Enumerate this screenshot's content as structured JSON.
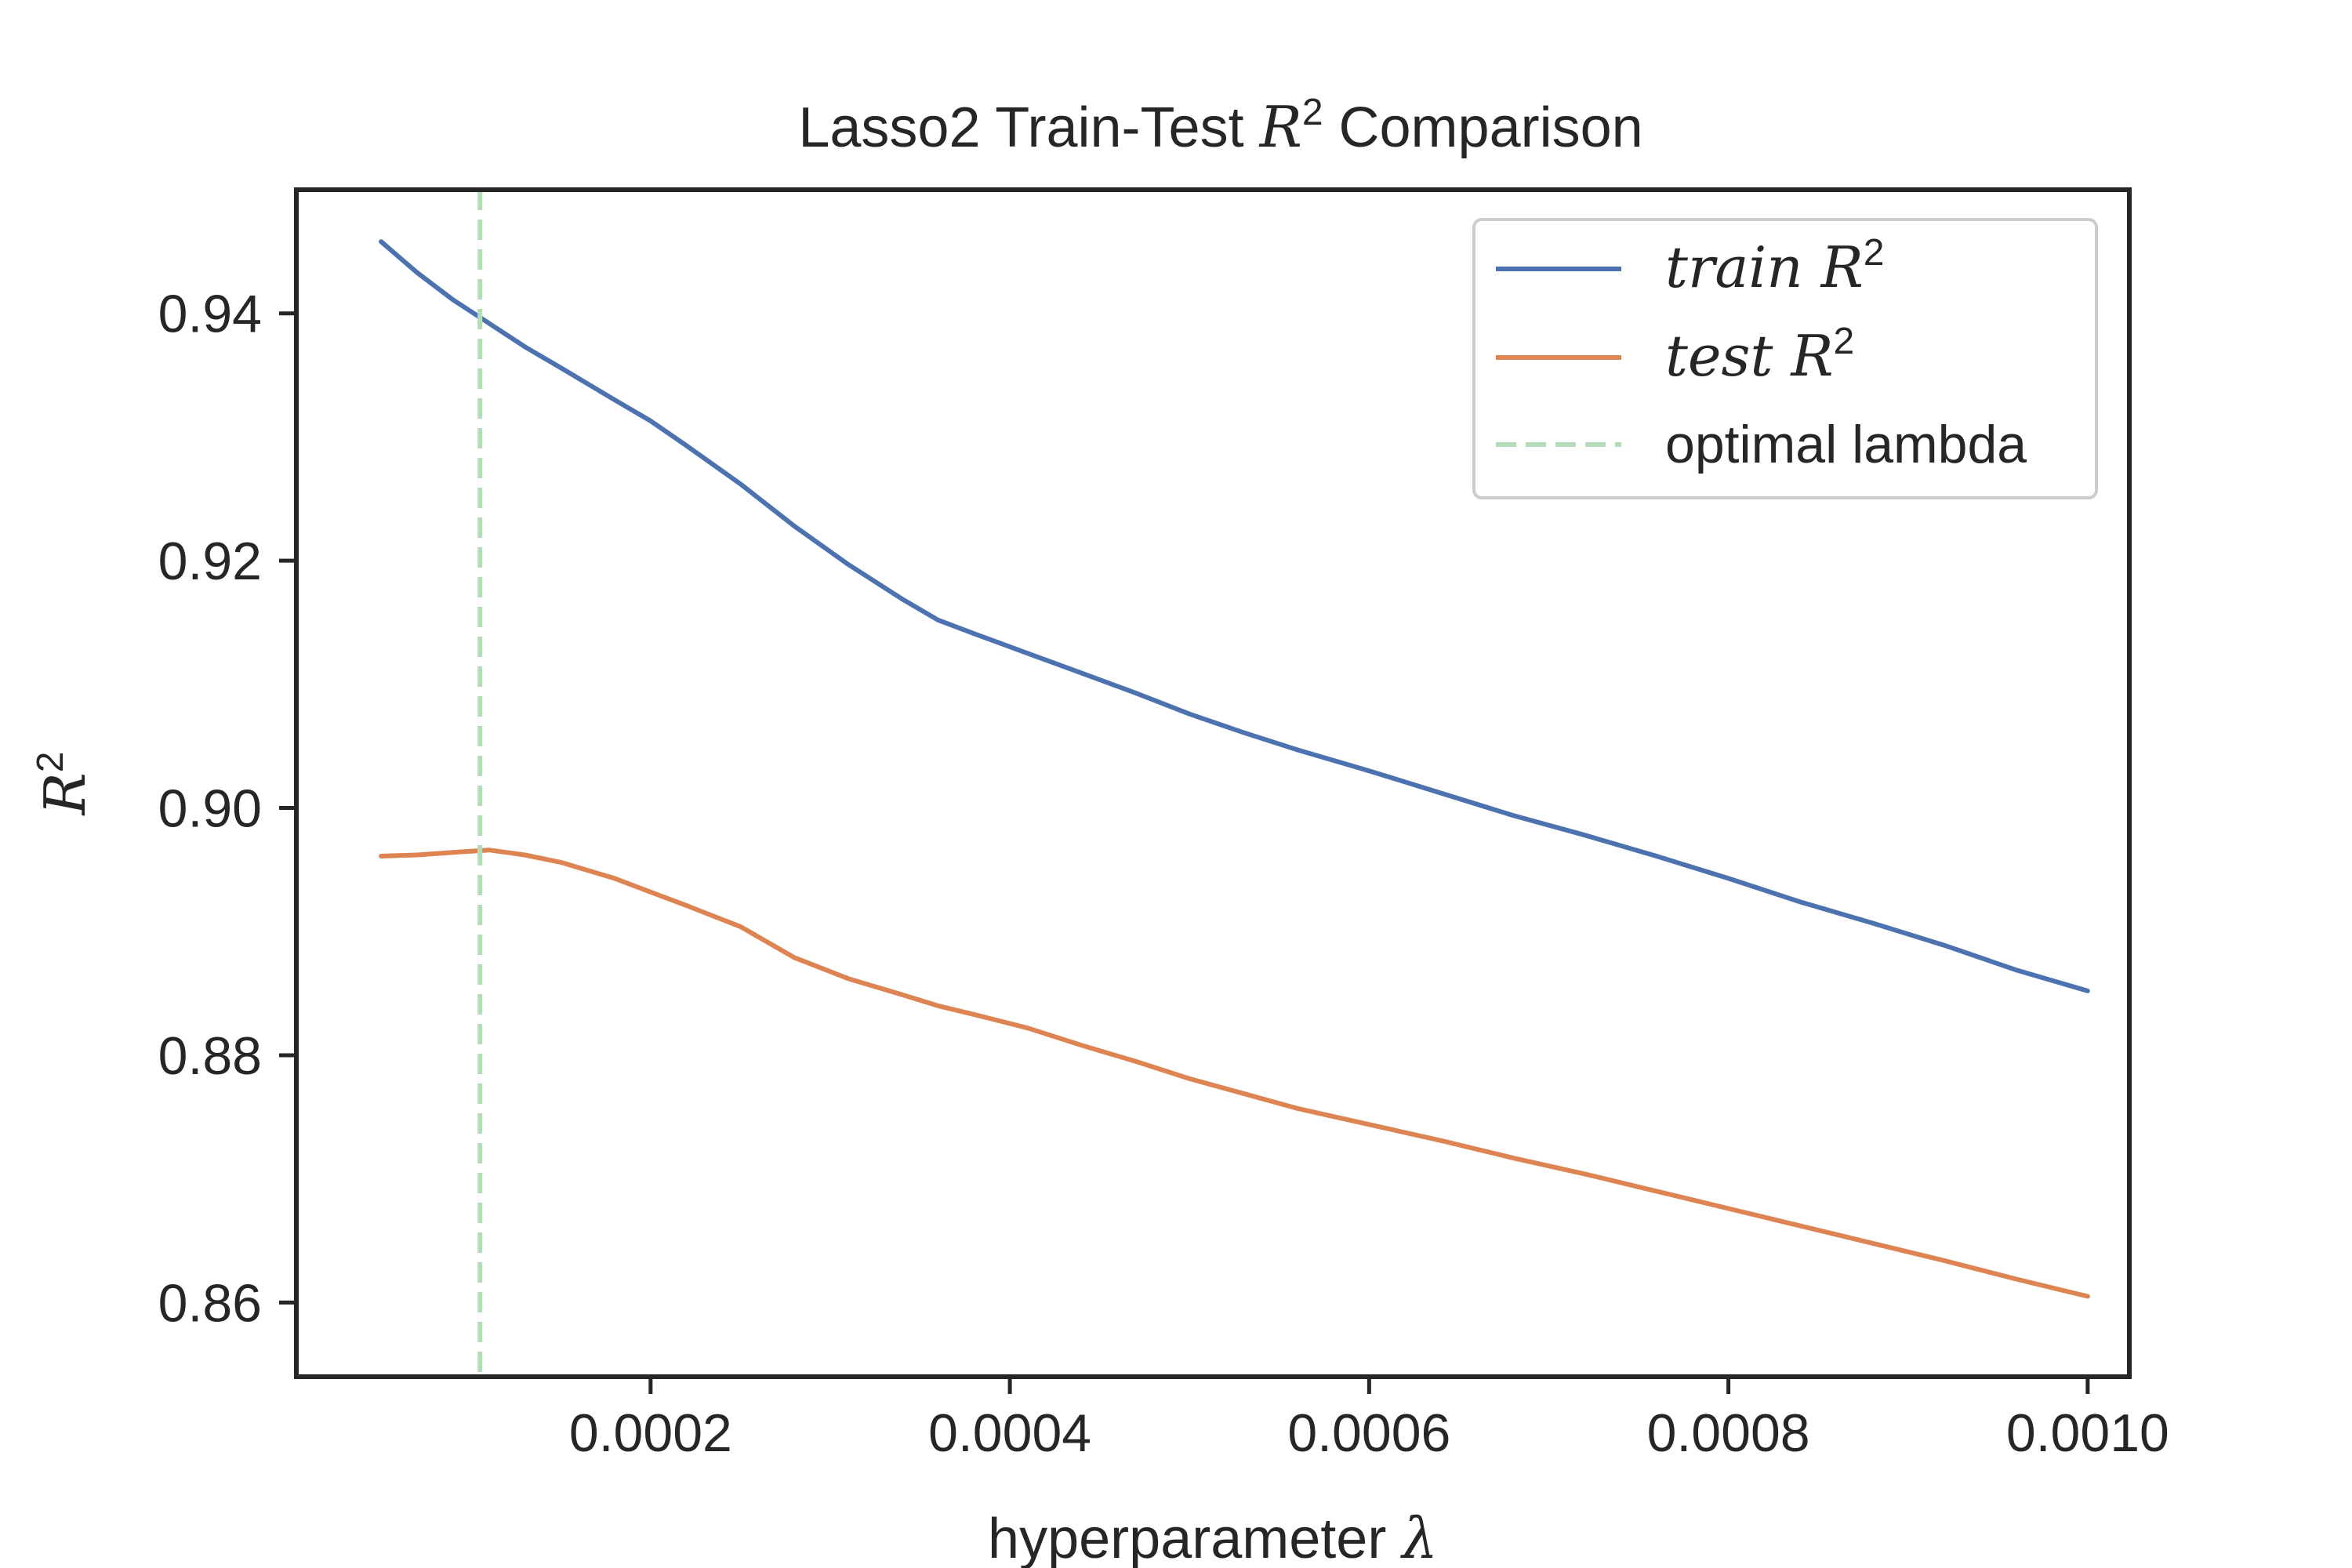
{
  "chart_data": {
    "type": "line",
    "title": {
      "prefix": "Lasso2 Train-Test ",
      "symbol": "R",
      "sup": "2",
      "suffix": " Comparison"
    },
    "xlabel": {
      "text": "hyperparameter ",
      "symbol": "λ"
    },
    "ylabel": {
      "symbol": "R",
      "sup": "2"
    },
    "xlim": [
      2.8e-06,
      0.0010232
    ],
    "ylim": [
      0.854,
      0.95
    ],
    "x_ticks": [
      {
        "value": 0.0002,
        "label": "0.0002"
      },
      {
        "value": 0.0004,
        "label": "0.0004"
      },
      {
        "value": 0.0006,
        "label": "0.0006"
      },
      {
        "value": 0.0008,
        "label": "0.0008"
      },
      {
        "value": 0.001,
        "label": "0.0010"
      }
    ],
    "y_ticks": [
      {
        "value": 0.86,
        "label": "0.86"
      },
      {
        "value": 0.88,
        "label": "0.88"
      },
      {
        "value": 0.9,
        "label": "0.90"
      },
      {
        "value": 0.92,
        "label": "0.92"
      },
      {
        "value": 0.94,
        "label": "0.94"
      }
    ],
    "grid": false,
    "legend_position": "top-right",
    "series": [
      {
        "name": "train R",
        "label_text": "train ",
        "label_symbol": "R",
        "label_sup": "2",
        "color": "#4c72b0",
        "style": "solid",
        "x": [
          5e-05,
          7e-05,
          9e-05,
          0.00011,
          0.00013,
          0.00015,
          0.00018,
          0.0002,
          0.00022,
          0.00025,
          0.00028,
          0.00031,
          0.00034,
          0.00036,
          0.00038,
          0.00041,
          0.00044,
          0.00047,
          0.0005,
          0.00053,
          0.00056,
          0.0006,
          0.00064,
          0.00068,
          0.00072,
          0.00076,
          0.0008,
          0.00084,
          0.00088,
          0.00092,
          0.00096,
          0.001
        ],
        "y": [
          0.9458,
          0.9433,
          0.9411,
          0.9392,
          0.9373,
          0.9356,
          0.933,
          0.9313,
          0.9293,
          0.9262,
          0.9228,
          0.9197,
          0.9169,
          0.9152,
          0.9141,
          0.9125,
          0.9109,
          0.9093,
          0.9076,
          0.9061,
          0.9047,
          0.903,
          0.9012,
          0.8994,
          0.8978,
          0.8961,
          0.8943,
          0.8924,
          0.8907,
          0.8889,
          0.8869,
          0.8852
        ]
      },
      {
        "name": "test R",
        "label_text": "test ",
        "label_symbol": "R",
        "label_sup": "2",
        "color": "#dd8452",
        "style": "solid",
        "x": [
          5e-05,
          7e-05,
          9e-05,
          0.00011,
          0.00013,
          0.00015,
          0.00018,
          0.0002,
          0.00022,
          0.00025,
          0.00028,
          0.00031,
          0.00034,
          0.00036,
          0.00038,
          0.00041,
          0.00044,
          0.00047,
          0.0005,
          0.00053,
          0.00056,
          0.0006,
          0.00064,
          0.00068,
          0.00072,
          0.00076,
          0.0008,
          0.00084,
          0.00088,
          0.00092,
          0.00096,
          0.001
        ],
        "y": [
          0.8961,
          0.8962,
          0.8964,
          0.8966,
          0.8962,
          0.8956,
          0.8943,
          0.8932,
          0.8921,
          0.8904,
          0.8879,
          0.8862,
          0.8849,
          0.884,
          0.8833,
          0.8822,
          0.8808,
          0.8795,
          0.8781,
          0.8769,
          0.8757,
          0.8744,
          0.8731,
          0.8717,
          0.8704,
          0.869,
          0.8676,
          0.8662,
          0.8648,
          0.8634,
          0.8619,
          0.8605
        ]
      },
      {
        "name": "optimal lambda",
        "label_text": "optimal lambda",
        "color": "#b5dcb9",
        "style": "dashed",
        "vline_x": 0.000105
      }
    ]
  }
}
